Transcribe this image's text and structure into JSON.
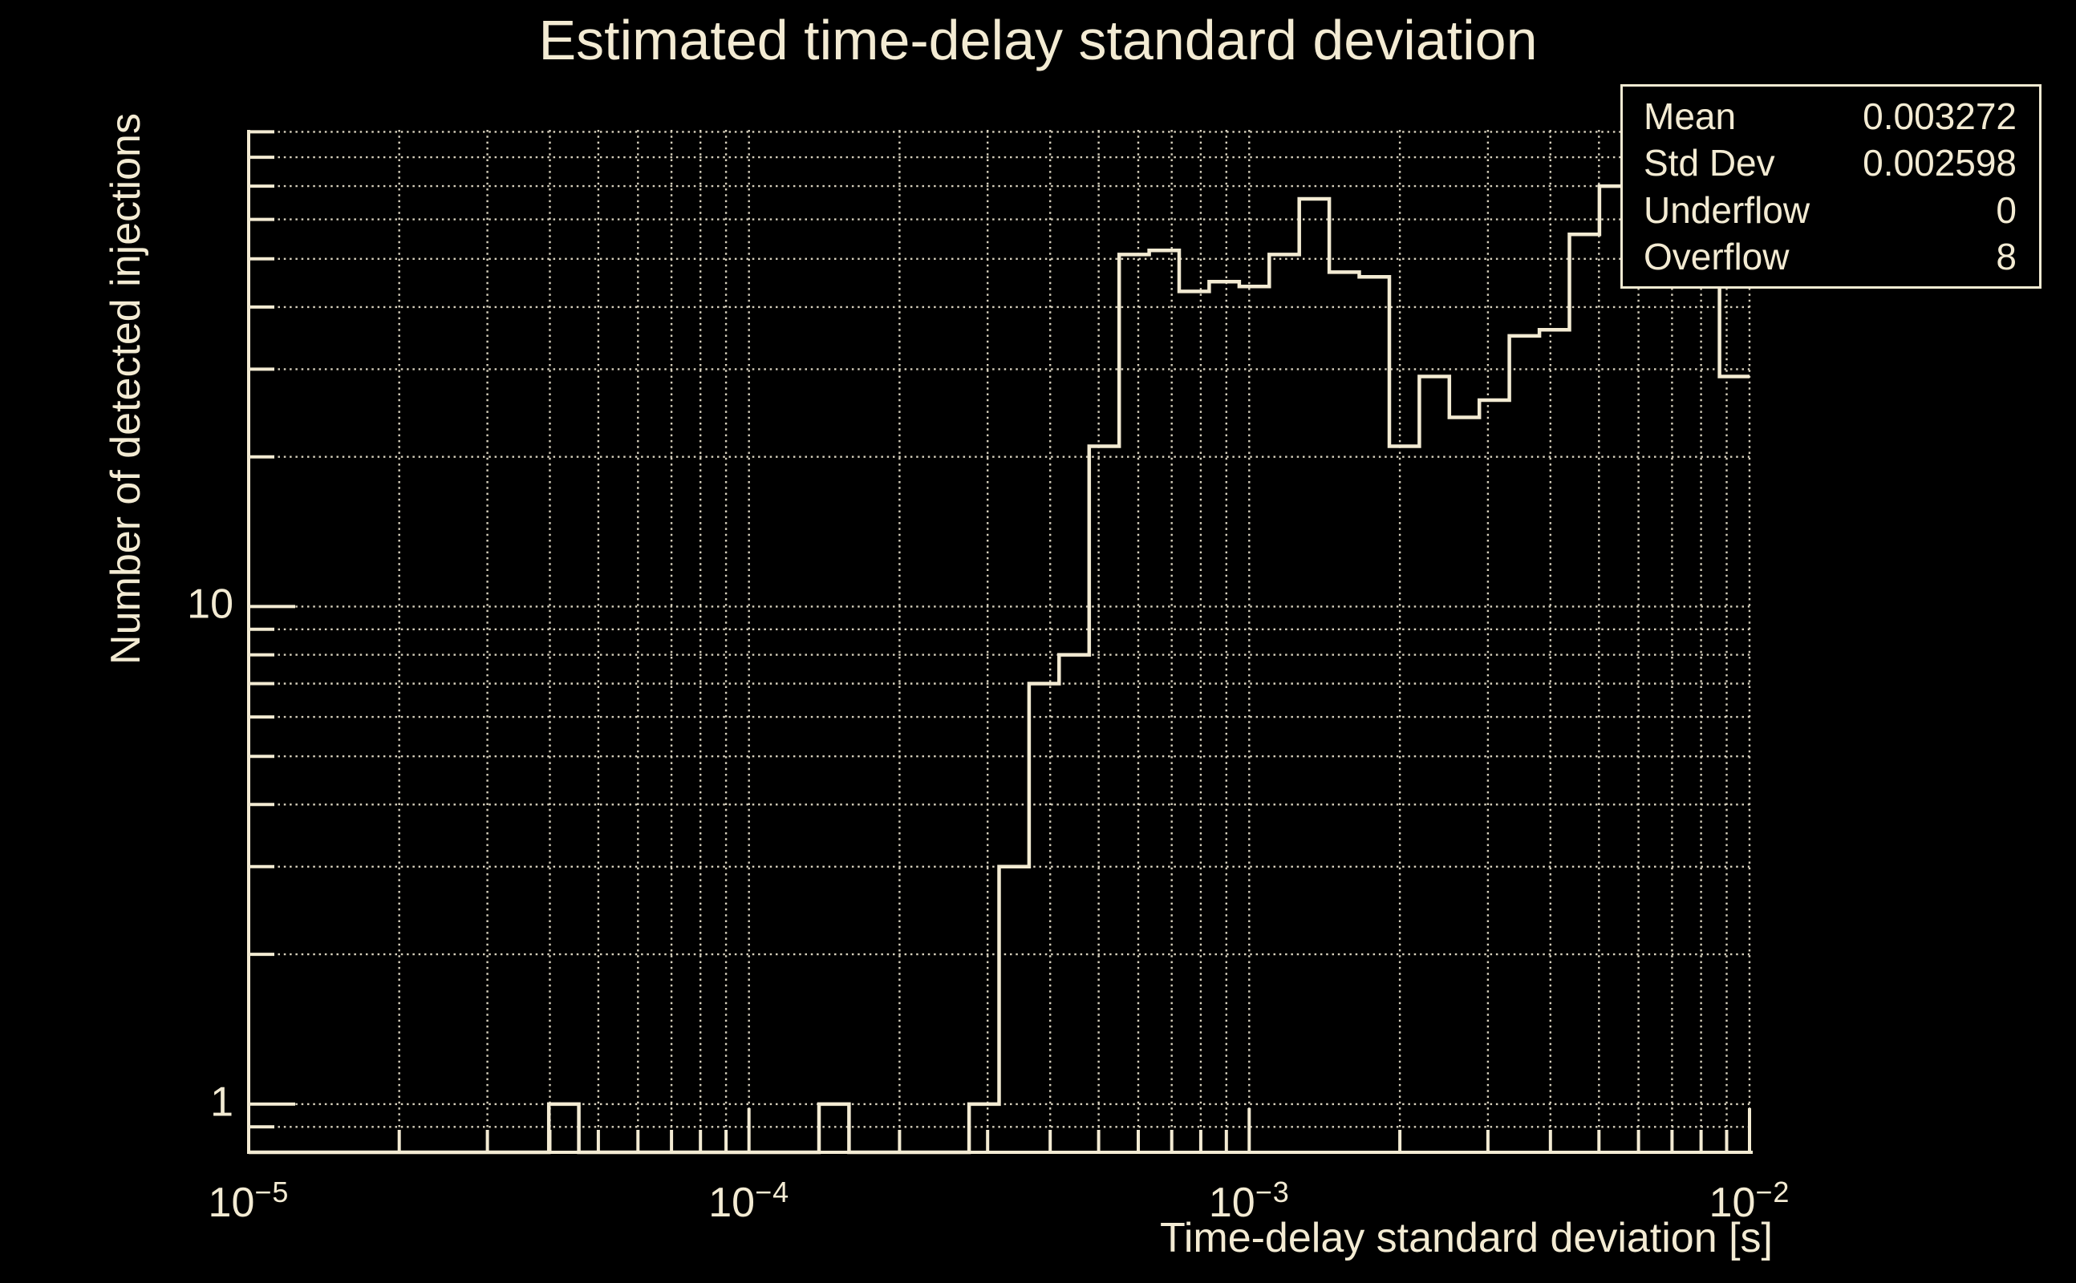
{
  "title": "Estimated time-delay standard deviation",
  "colors": {
    "background": "#000000",
    "foreground": "#f3ebd3",
    "grid": "#d8d1bd",
    "histogram_line": "#f3ebd3"
  },
  "stats_box": {
    "rows": [
      {
        "label": "Mean",
        "value": "0.003272"
      },
      {
        "label": "Std Dev",
        "value": "0.002598"
      },
      {
        "label": "Underflow",
        "value": "0"
      },
      {
        "label": "Overflow",
        "value": "8"
      }
    ]
  },
  "chart_data": {
    "type": "bar",
    "subtype": "step-histogram",
    "title": "Estimated time-delay standard deviation",
    "xlabel": "Time-delay standard deviation [s]",
    "ylabel": "Number of detected injections",
    "x_scale": "log",
    "y_scale": "log",
    "xlim": [
      1e-05,
      0.01
    ],
    "ylim": [
      0.8,
      90.8
    ],
    "grid": "on",
    "x_tick_exponents": [
      -5,
      -4,
      -3,
      -2
    ],
    "y_ticks": [
      {
        "value": 1,
        "label": "1"
      },
      {
        "value": 10,
        "label": "10"
      }
    ],
    "bins": {
      "log10_first_edge": -5,
      "log10_bin_width": 0.06,
      "n_bins": 50,
      "counts": [
        0,
        0,
        0,
        0,
        0,
        0,
        0,
        0,
        0,
        0,
        1,
        0,
        0,
        0,
        0,
        0,
        0,
        0,
        0,
        1,
        0,
        0,
        0,
        0,
        1,
        3,
        7,
        8,
        21,
        51,
        52,
        43,
        45,
        44,
        51,
        66,
        47,
        46,
        21,
        29,
        24,
        26,
        35,
        36,
        56,
        70,
        73,
        76,
        74,
        29
      ]
    }
  }
}
